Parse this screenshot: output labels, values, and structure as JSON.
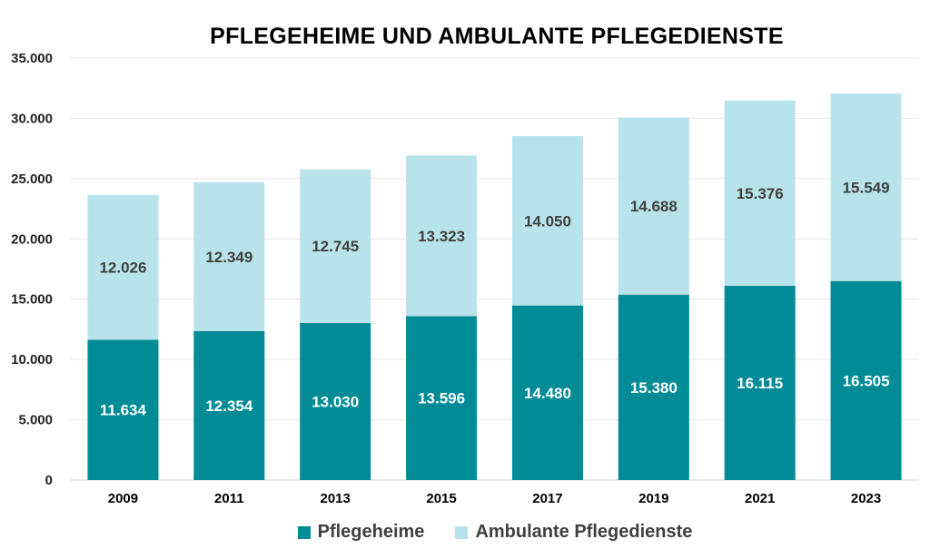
{
  "chart_data": {
    "type": "bar",
    "stacked": true,
    "title": "PFLEGEHEIME UND AMBULANTE PFLEGEDIENSTE",
    "xlabel": "",
    "ylabel": "",
    "categories": [
      "2009",
      "2011",
      "2013",
      "2015",
      "2017",
      "2019",
      "2021",
      "2023"
    ],
    "series": [
      {
        "name": "Pflegeheime",
        "color": "#008B96",
        "values": [
          11634,
          12354,
          13030,
          13596,
          14480,
          15380,
          16115,
          16505
        ],
        "labels": [
          "11.634",
          "12.354",
          "13.030",
          "13.596",
          "14.480",
          "15.380",
          "16.115",
          "16.505"
        ]
      },
      {
        "name": "Ambulante Pflegedienste",
        "color": "#B9E3EA",
        "values": [
          12026,
          12349,
          12745,
          13323,
          14050,
          14688,
          15376,
          15549
        ],
        "labels": [
          "12.026",
          "12.349",
          "12.745",
          "13.323",
          "14.050",
          "14.688",
          "15.376",
          "15.549"
        ]
      }
    ],
    "ylim": [
      0,
      35000
    ],
    "yticks": [
      {
        "value": 0,
        "label": "0"
      },
      {
        "value": 5000,
        "label": "5.000"
      },
      {
        "value": 10000,
        "label": "10.000"
      },
      {
        "value": 15000,
        "label": "15.000"
      },
      {
        "value": 20000,
        "label": "20.000"
      },
      {
        "value": 25000,
        "label": "25.000"
      },
      {
        "value": 30000,
        "label": "30.000"
      },
      {
        "value": 35000,
        "label": "35.000"
      }
    ],
    "grid": true,
    "legend_position": "bottom"
  }
}
